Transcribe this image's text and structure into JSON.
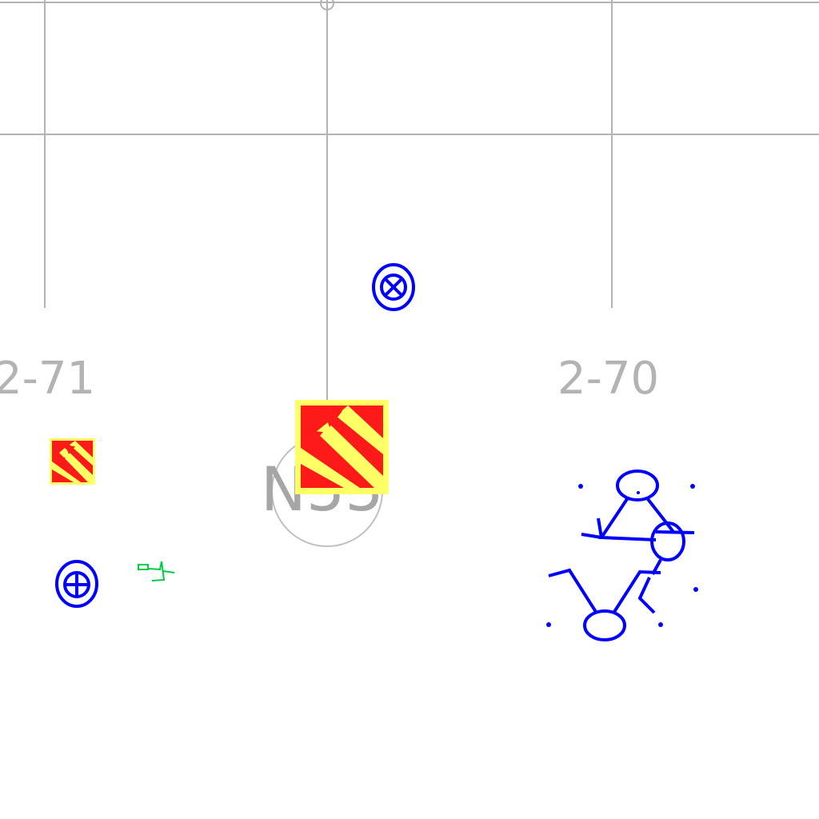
{
  "grid": {
    "labels": [
      "2-71",
      "2-70"
    ],
    "line_color": "#b3b3b3"
  },
  "tag": {
    "label": "N55"
  },
  "colors": {
    "symbol_blue": "#0000ff",
    "hazard_red": "#ff1a1a",
    "hazard_yellow": "#ffff66",
    "annotation_green": "#00cc44"
  },
  "symbols": [
    {
      "name": "valve-cross-circle-icon"
    },
    {
      "name": "valve-plus-circle-icon"
    },
    {
      "name": "hazard-sign-icon"
    },
    {
      "name": "small-hazard-sign-icon"
    },
    {
      "name": "stick-figure-cluster-icon"
    },
    {
      "name": "green-annotation-mark"
    }
  ]
}
